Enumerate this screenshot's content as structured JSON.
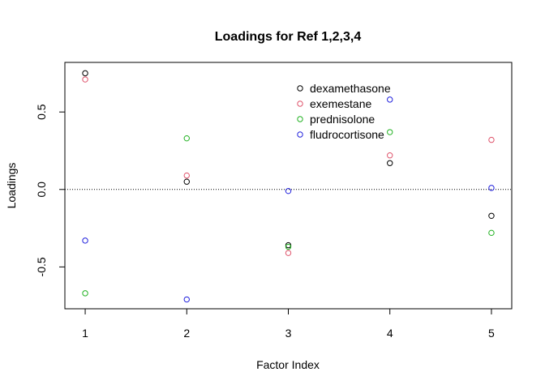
{
  "chart_data": {
    "type": "scatter",
    "title": "Loadings for Ref 1,2,3,4",
    "xlabel": "Factor Index",
    "ylabel": "Loadings",
    "xlim": [
      0.8,
      5.2
    ],
    "ylim": [
      -0.77,
      0.82
    ],
    "x_ticks": [
      1,
      2,
      3,
      4,
      5
    ],
    "x_tick_labels": [
      "1",
      "2",
      "3",
      "4",
      "5"
    ],
    "y_ticks": [
      -0.5,
      0.0,
      0.5
    ],
    "y_tick_labels": [
      "-0.5",
      "0.0",
      "0.5"
    ],
    "reference_line": {
      "y": 0,
      "style": "dotted",
      "color": "#000000"
    },
    "grid": false,
    "legend_position": "top-center",
    "series": [
      {
        "name": "dexamethasone",
        "color": "#000000",
        "x": [
          1,
          2,
          3,
          4,
          5
        ],
        "y": [
          0.75,
          0.05,
          -0.36,
          0.17,
          -0.17
        ]
      },
      {
        "name": "exemestane",
        "color": "#DF536B",
        "x": [
          1,
          2,
          3,
          4,
          5
        ],
        "y": [
          0.71,
          0.09,
          -0.41,
          0.22,
          0.32
        ]
      },
      {
        "name": "prednisolone",
        "color": "#22B222",
        "x": [
          1,
          2,
          3,
          4,
          5
        ],
        "y": [
          -0.67,
          0.33,
          -0.37,
          0.37,
          -0.28
        ]
      },
      {
        "name": "fludrocortisone",
        "color": "#2222DD",
        "x": [
          1,
          2,
          3,
          4,
          5
        ],
        "y": [
          -0.33,
          -0.71,
          -0.01,
          0.58,
          0.01
        ]
      }
    ]
  }
}
